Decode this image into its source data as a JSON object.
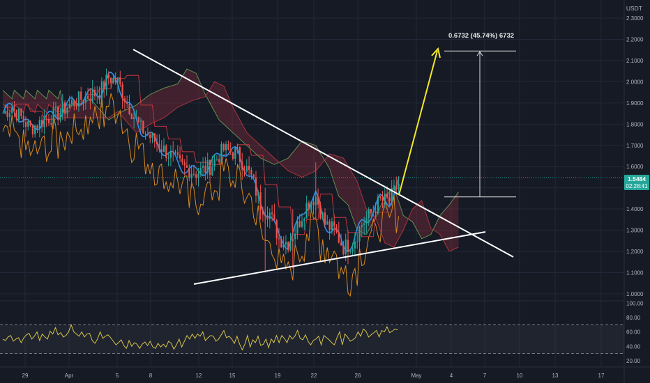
{
  "chart_data": {
    "type": "candlestick",
    "currency_label": "USDT",
    "price_axis": {
      "ticks": [
        "2.3000",
        "2.2000",
        "2.1000",
        "2.0000",
        "1.9000",
        "1.8000",
        "1.7000",
        "1.6000",
        "1.5000",
        "1.4000",
        "1.3000",
        "1.2000",
        "1.1000",
        "1.0000"
      ],
      "range": [
        0.97,
        2.33
      ]
    },
    "current_price": {
      "value": "1.5484",
      "countdown": "02:28:41"
    },
    "x_axis": {
      "ticks": [
        "29",
        "Apr",
        "5",
        "8",
        "12",
        "15",
        "19",
        "22",
        "26",
        "May",
        "4",
        "7",
        "10",
        "13",
        "17"
      ]
    },
    "annotations": {
      "measure_label": "0.6732 (45.74%) 6732",
      "measure_from": 1.457,
      "measure_to": 2.145,
      "upper_trendline": [
        {
          "date": "Apr 6",
          "price": 2.145
        },
        {
          "date": "May 10",
          "price": 1.175
        }
      ],
      "lower_trendline": [
        {
          "date": "Apr 12",
          "price": 1.142
        },
        {
          "date": "May 8",
          "price": 1.298
        }
      ],
      "projection_arrow": [
        {
          "date": "Apr 29",
          "price": 1.49
        },
        {
          "date": "May 2",
          "price": 2.145
        }
      ]
    },
    "rsi": {
      "ticks": [
        "100.00",
        "80.00",
        "60.00",
        "40.00",
        "20.00"
      ],
      "upper_band": 70,
      "lower_band": 30,
      "values": [
        50,
        48,
        53,
        55,
        47,
        50,
        52,
        45,
        52,
        56,
        58,
        50,
        54,
        60,
        48,
        57,
        53,
        50,
        61,
        57,
        66,
        56,
        59,
        53,
        55,
        60,
        70,
        60,
        57,
        54,
        60,
        53,
        57,
        58,
        48,
        44,
        50,
        60,
        51,
        54,
        56,
        52,
        47,
        42,
        45,
        49,
        41,
        37,
        48,
        40,
        45,
        43,
        37,
        43,
        46,
        41,
        47,
        39,
        37,
        44,
        39,
        43,
        39,
        47,
        44,
        36,
        42,
        50,
        39,
        47,
        55,
        50,
        57,
        51,
        57,
        54,
        60,
        48,
        52,
        55,
        54,
        47,
        50,
        56,
        62,
        52,
        54,
        50,
        44,
        54,
        43,
        35,
        43,
        55,
        39,
        49,
        45,
        54,
        41,
        43,
        50,
        38,
        50,
        45,
        55,
        45,
        55,
        51,
        45,
        55,
        50,
        54,
        62,
        51,
        49,
        56,
        47,
        42,
        48,
        50,
        54,
        42,
        55,
        52,
        49,
        45,
        42,
        52,
        60,
        42,
        57,
        53,
        47,
        49,
        52,
        60,
        54,
        64,
        61,
        53,
        56,
        59,
        62,
        53,
        62,
        60,
        67,
        59,
        61,
        64,
        63
      ]
    }
  }
}
